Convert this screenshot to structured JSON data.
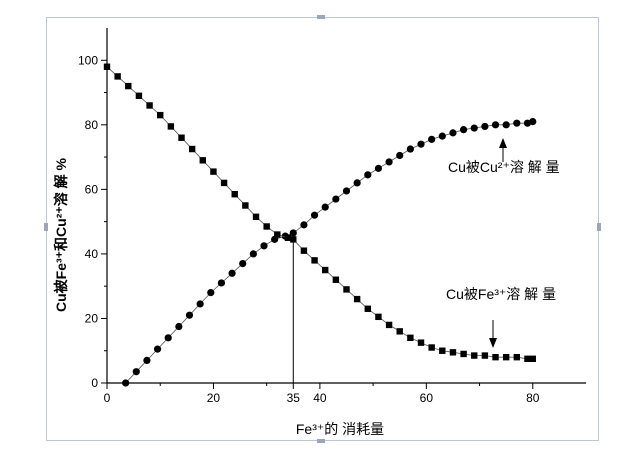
{
  "chart_data": {
    "type": "scatter",
    "xlabel": "Fe³⁺的 消耗量",
    "ylabel": "Cu被Fe³⁺和Cu²⁺溶 解 %",
    "xlim": [
      0,
      90
    ],
    "ylim": [
      0,
      110
    ],
    "x_ticks": [
      0,
      20,
      35,
      40,
      60,
      80
    ],
    "y_ticks": [
      0,
      20,
      40,
      60,
      80,
      100
    ],
    "grid": false,
    "series": [
      {
        "name": "Cu被Cu²⁺溶 解 量",
        "marker": "circle",
        "x": [
          3.5,
          5.5,
          7.5,
          9.5,
          11.5,
          13.5,
          15.5,
          17.5,
          19.5,
          21.5,
          23.5,
          25.5,
          27.5,
          29.5,
          31.5,
          33.5,
          35,
          37,
          39,
          41,
          43,
          45,
          47,
          49,
          51,
          53,
          55,
          57,
          59,
          61,
          63,
          65,
          67,
          69,
          71,
          73,
          75,
          77,
          79,
          80
        ],
        "y": [
          0,
          3.5,
          7,
          10.5,
          14,
          17.5,
          21,
          24.5,
          28,
          31,
          34,
          37,
          40,
          42.5,
          44.5,
          45.5,
          46.5,
          49,
          52,
          54.5,
          57,
          59.5,
          62,
          64.5,
          66.5,
          68.5,
          70.5,
          72.5,
          74,
          75.5,
          76.5,
          77.5,
          78.5,
          79,
          79.5,
          80,
          80,
          80.5,
          80.5,
          81
        ]
      },
      {
        "name": "Cu被Fe³⁺溶 解 量",
        "marker": "square",
        "x": [
          0,
          2,
          4,
          6,
          8,
          10,
          12,
          14,
          16,
          18,
          20,
          22,
          24,
          26,
          28,
          30,
          32,
          34,
          35,
          37,
          39,
          41,
          43,
          45,
          47,
          49,
          51,
          53,
          55,
          57,
          59,
          61,
          63,
          65,
          67,
          69,
          71,
          73,
          75,
          77,
          79,
          80
        ],
        "y": [
          98,
          95,
          92,
          89,
          86,
          83,
          79.5,
          76,
          72.5,
          69,
          65.5,
          62,
          58.5,
          55,
          51.5,
          48.5,
          46,
          45,
          44.5,
          41,
          38,
          35,
          32,
          29,
          26,
          23,
          20.5,
          18,
          16,
          14,
          12.5,
          11,
          10,
          9.5,
          9,
          8.5,
          8.5,
          8,
          8,
          8,
          7.5,
          7.5
        ]
      }
    ],
    "annotations": {
      "cu2_label": "Cu被Cu²⁺溶 解 量",
      "fe3_label": "Cu被Fe³⁺溶 解 量",
      "intersection_x": 35
    }
  }
}
